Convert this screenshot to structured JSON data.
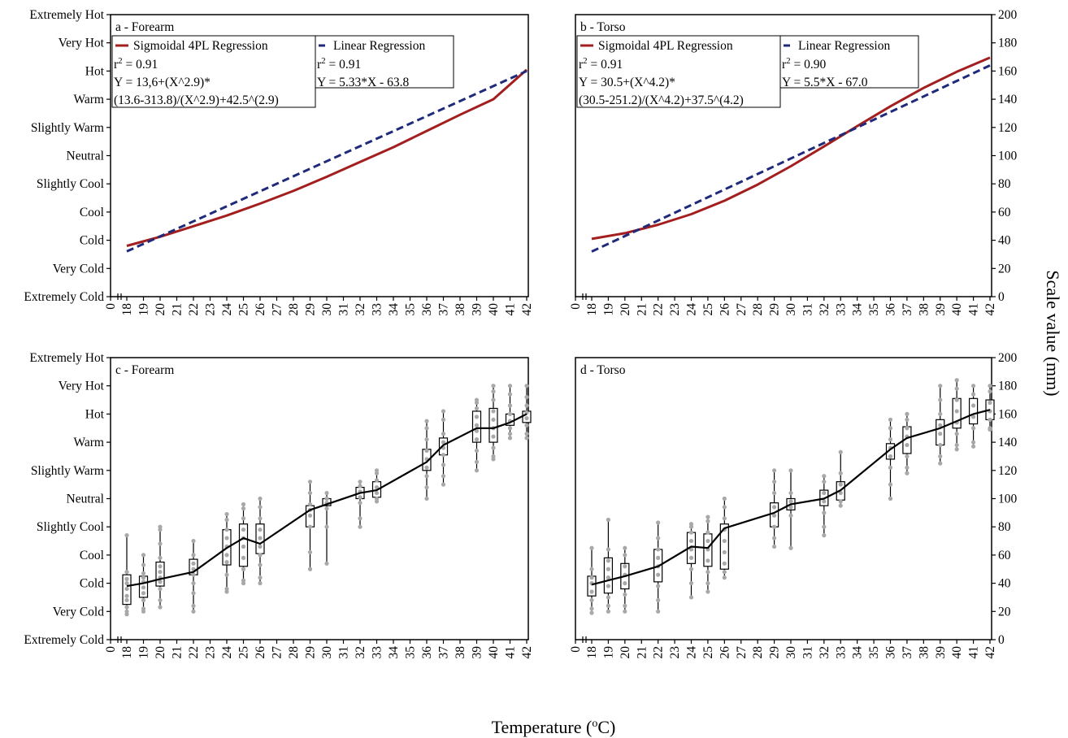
{
  "figure": {
    "xlabel": "Temperature (°C)",
    "xlabel_base": "Temperature (",
    "xlabel_sup": "o",
    "xlabel_tail": "C)",
    "right_ylabel": "Scale value (mm)"
  },
  "colors": {
    "sigmoid": "#a31f1f",
    "linear": "#1f2a7a",
    "points": "#a8a8a8",
    "box": "#000000",
    "median_line": "#000000"
  },
  "chart_data": [
    {
      "id": "a",
      "type": "line",
      "panel_label": "a - Forearm",
      "category_axis_labels": [
        "Extremely Cold",
        "Very Cold",
        "Cold",
        "Cool",
        "Slightly Cool",
        "Neutral",
        "Slightly Warm",
        "Warm",
        "Hot",
        "Very Hot",
        "Extremely Hot"
      ],
      "x_tick_labels": [
        "0",
        "18",
        "19",
        "20",
        "21",
        "22",
        "23",
        "24",
        "25",
        "26",
        "27",
        "28",
        "29",
        "30",
        "31",
        "32",
        "33",
        "34",
        "35",
        "36",
        "37",
        "38",
        "39",
        "40",
        "41",
        "42"
      ],
      "ylim": [
        0,
        200
      ],
      "legend": {
        "sigmoid_label": "Sigmoidal 4PL Regression",
        "linear_label": "Linear Regression",
        "sigmoid_r2": "= 0.91",
        "sigmoid_eq1": "Y = 13,6+(X^2.9)*",
        "sigmoid_eq2": "(13.6-313.8)/(X^2.9)+42.5^(2.9)",
        "linear_r2": "= 0.91",
        "linear_eq": "Y = 5.33*X - 63.8"
      },
      "series": [
        {
          "name": "Sigmoidal 4PL Regression",
          "style": "solid",
          "x": [
            18,
            20,
            22,
            24,
            26,
            28,
            30,
            32,
            34,
            36,
            38,
            40,
            42
          ],
          "y": [
            36,
            42.5,
            50,
            57.5,
            66,
            75,
            85,
            95.5,
            106,
            117.5,
            129,
            140,
            161
          ]
        },
        {
          "name": "Linear Regression",
          "style": "dashed",
          "x": [
            18,
            42
          ],
          "y": [
            32.1,
            160
          ]
        }
      ]
    },
    {
      "id": "b",
      "type": "line",
      "panel_label": "b - Torso",
      "y_tick_labels": [
        "0",
        "20",
        "40",
        "60",
        "80",
        "100",
        "120",
        "140",
        "160",
        "180",
        "200"
      ],
      "x_tick_labels": [
        "0",
        "18",
        "19",
        "20",
        "21",
        "22",
        "23",
        "24",
        "25",
        "26",
        "27",
        "28",
        "29",
        "30",
        "31",
        "32",
        "33",
        "34",
        "35",
        "36",
        "37",
        "38",
        "39",
        "40",
        "41",
        "42"
      ],
      "ylim": [
        0,
        200
      ],
      "legend": {
        "sigmoid_label": "Sigmoidal 4PL Regression",
        "linear_label": "Linear  Regression",
        "sigmoid_r2": "= 0.91",
        "sigmoid_eq1": "Y = 30.5+(X^4.2)*",
        "sigmoid_eq2": "(30.5-251.2)/(X^4.2)+37.5^(4.2)",
        "linear_r2": "= 0.90",
        "linear_eq": "Y = 5.5*X - 67.0"
      },
      "series": [
        {
          "name": "Sigmoidal 4PL Regression",
          "style": "solid",
          "x": [
            18,
            20,
            22,
            24,
            26,
            28,
            30,
            32,
            34,
            36,
            38,
            40,
            42
          ],
          "y": [
            41,
            45,
            51,
            58.5,
            68,
            79.5,
            92.5,
            106.5,
            121,
            135,
            148,
            159.5,
            169.5
          ]
        },
        {
          "name": "Linear  Regression",
          "style": "dashed",
          "x": [
            18,
            42
          ],
          "y": [
            32,
            164
          ]
        }
      ]
    },
    {
      "id": "c",
      "type": "box",
      "panel_label": "c - Forearm",
      "category_axis_labels": [
        "Extremely Cold",
        "Very Cold",
        "Cold",
        "Cool",
        "Slightly Cool",
        "Neutral",
        "Slightly Warm",
        "Warm",
        "Hot",
        "Very Hot",
        "Extremely Hot"
      ],
      "x_tick_labels": [
        "0",
        "18",
        "19",
        "20",
        "21",
        "22",
        "23",
        "24",
        "25",
        "26",
        "27",
        "28",
        "29",
        "30",
        "31",
        "32",
        "33",
        "34",
        "35",
        "36",
        "37",
        "38",
        "39",
        "40",
        "41",
        "42"
      ],
      "ylim": [
        0,
        200
      ],
      "boxes": [
        {
          "x": 18,
          "min": 18,
          "q1": 25,
          "median": 38,
          "q3": 46,
          "max": 74,
          "points": [
            20,
            23,
            28,
            31,
            36,
            40,
            43,
            48
          ]
        },
        {
          "x": 19,
          "min": 20,
          "q1": 30,
          "median": 40,
          "q3": 45,
          "max": 60,
          "points": [
            22,
            28,
            33,
            37,
            41,
            44,
            47,
            53
          ]
        },
        {
          "x": 20,
          "min": 23,
          "q1": 38,
          "median": 43,
          "q3": 55,
          "max": 80,
          "points": [
            28,
            36,
            41,
            44,
            48,
            52,
            58,
            68,
            78
          ]
        },
        {
          "x": 22,
          "min": 20,
          "q1": 46,
          "median": 48,
          "q3": 57,
          "max": 70,
          "points": [
            24,
            33,
            40,
            46,
            50,
            54,
            60
          ]
        },
        {
          "x": 24,
          "min": 34,
          "q1": 53,
          "median": 65,
          "q3": 78,
          "max": 89,
          "points": [
            36,
            46,
            55,
            60,
            66,
            72,
            78,
            85
          ]
        },
        {
          "x": 25,
          "min": 40,
          "q1": 52,
          "median": 72,
          "q3": 82,
          "max": 96,
          "points": [
            42,
            50,
            58,
            66,
            72,
            78,
            86,
            93
          ]
        },
        {
          "x": 26,
          "min": 40,
          "q1": 61,
          "median": 68,
          "q3": 82,
          "max": 100,
          "points": [
            44,
            53,
            60,
            66,
            72,
            78,
            86,
            94
          ]
        },
        {
          "x": 29,
          "min": 50,
          "q1": 80,
          "median": 92,
          "q3": 95,
          "max": 112,
          "points": [
            62,
            80,
            88,
            92,
            96,
            104
          ]
        },
        {
          "x": 30,
          "min": 54,
          "q1": 95,
          "median": 96,
          "q3": 100,
          "max": 104,
          "points": [
            80,
            93,
            97,
            100
          ]
        },
        {
          "x": 32,
          "min": 80,
          "q1": 100,
          "median": 104,
          "q3": 108,
          "max": 112,
          "points": [
            86,
            97,
            101,
            105,
            109
          ]
        },
        {
          "x": 33,
          "min": 98,
          "q1": 101,
          "median": 106,
          "q3": 112,
          "max": 120,
          "points": [
            100,
            104,
            108,
            113,
            118
          ]
        },
        {
          "x": 36,
          "min": 100,
          "q1": 120,
          "median": 126,
          "q3": 135,
          "max": 155,
          "points": [
            108,
            116,
            122,
            128,
            134,
            142,
            150
          ]
        },
        {
          "x": 37,
          "min": 110,
          "q1": 131,
          "median": 138,
          "q3": 143,
          "max": 162,
          "points": [
            116,
            124,
            131,
            136,
            140,
            146,
            156
          ]
        },
        {
          "x": 39,
          "min": 120,
          "q1": 140,
          "median": 150,
          "q3": 162,
          "max": 170,
          "points": [
            126,
            134,
            142,
            148,
            152,
            158,
            164,
            168
          ]
        },
        {
          "x": 40,
          "min": 128,
          "q1": 140,
          "median": 150,
          "q3": 164,
          "max": 180,
          "points": [
            130,
            136,
            144,
            150,
            156,
            162,
            170,
            176
          ]
        },
        {
          "x": 41,
          "min": 143,
          "q1": 152,
          "median": 154,
          "q3": 160,
          "max": 180,
          "points": [
            146,
            150,
            155,
            160,
            166,
            174
          ]
        },
        {
          "x": 42,
          "min": 143,
          "q1": 154,
          "median": 160,
          "q3": 162,
          "max": 180,
          "points": [
            146,
            152,
            157,
            161,
            166,
            172
          ]
        }
      ]
    },
    {
      "id": "d",
      "type": "box",
      "panel_label": "d - Torso",
      "y_tick_labels": [
        "0",
        "20",
        "40",
        "60",
        "80",
        "100",
        "120",
        "140",
        "160",
        "180",
        "200"
      ],
      "x_tick_labels": [
        "0",
        "18",
        "19",
        "20",
        "21",
        "22",
        "23",
        "24",
        "25",
        "26",
        "27",
        "28",
        "29",
        "30",
        "31",
        "32",
        "33",
        "34",
        "35",
        "36",
        "37",
        "38",
        "39",
        "40",
        "41",
        "42"
      ],
      "ylim": [
        0,
        200
      ],
      "boxes": [
        {
          "x": 18,
          "min": 19,
          "q1": 31,
          "median": 39,
          "q3": 45,
          "max": 65,
          "points": [
            22,
            28,
            34,
            40,
            44,
            50
          ]
        },
        {
          "x": 19,
          "min": 20,
          "q1": 33,
          "median": 42,
          "q3": 58,
          "max": 85,
          "points": [
            24,
            30,
            38,
            44,
            50,
            56,
            64
          ]
        },
        {
          "x": 20,
          "min": 20,
          "q1": 36,
          "median": 45,
          "q3": 54,
          "max": 65,
          "points": [
            24,
            32,
            40,
            46,
            52,
            60
          ]
        },
        {
          "x": 22,
          "min": 20,
          "q1": 41,
          "median": 52,
          "q3": 64,
          "max": 83,
          "points": [
            28,
            38,
            46,
            52,
            58,
            64,
            72
          ]
        },
        {
          "x": 24,
          "min": 30,
          "q1": 54,
          "median": 66,
          "q3": 76,
          "max": 82,
          "points": [
            40,
            50,
            58,
            64,
            70,
            76,
            80
          ]
        },
        {
          "x": 25,
          "min": 34,
          "q1": 52,
          "median": 65,
          "q3": 75,
          "max": 87,
          "points": [
            40,
            48,
            56,
            64,
            70,
            76,
            84
          ]
        },
        {
          "x": 26,
          "min": 44,
          "q1": 50,
          "median": 79,
          "q3": 82,
          "max": 100,
          "points": [
            48,
            54,
            62,
            70,
            78,
            86,
            94
          ]
        },
        {
          "x": 29,
          "min": 66,
          "q1": 80,
          "median": 90,
          "q3": 97,
          "max": 120,
          "points": [
            72,
            80,
            88,
            94,
            104,
            112
          ]
        },
        {
          "x": 30,
          "min": 65,
          "q1": 92,
          "median": 96,
          "q3": 100,
          "max": 120,
          "points": [
            88,
            94,
            98,
            104
          ]
        },
        {
          "x": 32,
          "min": 74,
          "q1": 95,
          "median": 100,
          "q3": 106,
          "max": 116,
          "points": [
            80,
            90,
            98,
            104,
            112
          ]
        },
        {
          "x": 33,
          "min": 95,
          "q1": 99,
          "median": 106,
          "q3": 112,
          "max": 133,
          "points": [
            98,
            104,
            110,
            118
          ]
        },
        {
          "x": 36,
          "min": 100,
          "q1": 128,
          "median": 135,
          "q3": 139,
          "max": 156,
          "points": [
            110,
            122,
            130,
            136,
            142,
            150
          ]
        },
        {
          "x": 37,
          "min": 118,
          "q1": 132,
          "median": 143,
          "q3": 151,
          "max": 160,
          "points": [
            122,
            130,
            138,
            144,
            150,
            156
          ]
        },
        {
          "x": 39,
          "min": 125,
          "q1": 138,
          "median": 150,
          "q3": 156,
          "max": 180,
          "points": [
            130,
            138,
            146,
            152,
            160,
            170
          ]
        },
        {
          "x": 40,
          "min": 135,
          "q1": 150,
          "median": 155,
          "q3": 171,
          "max": 184,
          "points": [
            138,
            146,
            154,
            162,
            170,
            178
          ]
        },
        {
          "x": 41,
          "min": 137,
          "q1": 153,
          "median": 160,
          "q3": 171,
          "max": 180,
          "points": [
            140,
            150,
            158,
            166,
            174
          ]
        },
        {
          "x": 42,
          "min": 149,
          "q1": 156,
          "median": 163,
          "q3": 170,
          "max": 180,
          "points": [
            150,
            156,
            162,
            168,
            176
          ]
        }
      ]
    }
  ]
}
